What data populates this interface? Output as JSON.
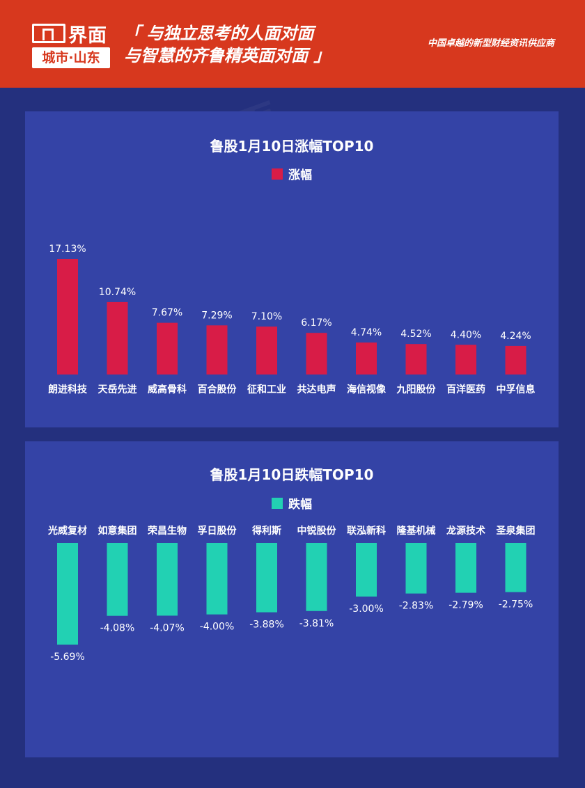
{
  "header": {
    "logo_name": "界面",
    "logo_city": "城市·山东",
    "slogan_line1": "「 与独立思考的人面对面",
    "slogan_line2": "与智慧的齐鲁精英面对面 」",
    "tagline": "中国卓越的新型财经资讯供应商"
  },
  "colors": {
    "header_bg": "#d7381e",
    "page_bg": "#24307e",
    "panel_bg": "#3443a6",
    "gain": "#d81c47",
    "loss": "#22d1b3"
  },
  "chart_data": [
    {
      "type": "bar",
      "title": "鲁股1月10日涨幅TOP10",
      "categories": [
        "朗进科技",
        "天岳先进",
        "威高骨科",
        "百合股份",
        "征和工业",
        "共达电声",
        "海信视像",
        "九阳股份",
        "百洋医药",
        "中孚信息"
      ],
      "series": [
        {
          "name": "涨幅",
          "values": [
            17.13,
            10.74,
            7.67,
            7.29,
            7.1,
            6.17,
            4.74,
            4.52,
            4.4,
            4.24
          ],
          "labels": [
            "17.13%",
            "10.74%",
            "7.67%",
            "7.29%",
            "7.10%",
            "6.17%",
            "4.74%",
            "4.52%",
            "4.40%",
            "4.24%"
          ]
        }
      ],
      "legend_position": "top-center",
      "grid": false
    },
    {
      "type": "bar",
      "title": "鲁股1月10日跌幅TOP10",
      "categories": [
        "光威复材",
        "如意集团",
        "荣昌生物",
        "孚日股份",
        "得利斯",
        "中锐股份",
        "联泓新科",
        "隆基机械",
        "龙源技术",
        "圣泉集团"
      ],
      "series": [
        {
          "name": "跌幅",
          "values": [
            -5.69,
            -4.08,
            -4.07,
            -4.0,
            -3.88,
            -3.81,
            -3.0,
            -2.83,
            -2.79,
            -2.75
          ],
          "labels": [
            "-5.69%",
            "-4.08%",
            "-4.07%",
            "-4.00%",
            "-3.88%",
            "-3.81%",
            "-3.00%",
            "-2.83%",
            "-2.79%",
            "-2.75%"
          ]
        }
      ],
      "legend_position": "top-center",
      "grid": false
    }
  ]
}
